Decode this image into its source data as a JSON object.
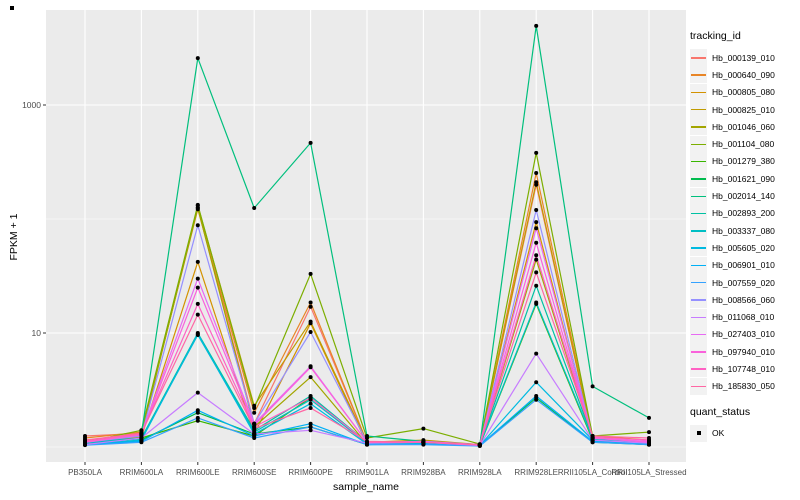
{
  "figure": {
    "panel_bg": "#EBEBEB",
    "grid_color": "#FFFFFF",
    "tick_label_color": "#4D4D4D",
    "tick_mark_color": "#333333"
  },
  "chart_data": {
    "type": "line",
    "title": "",
    "xlabel": "sample_name",
    "ylabel": "FPKM + 1",
    "y_scale": "log10",
    "ylim": [
      0.74,
      6900
    ],
    "grid": true,
    "legend_position": "right",
    "y_ticks": [
      {
        "value": 10,
        "label": "10"
      },
      {
        "value": 1000,
        "label": "1000"
      }
    ],
    "y_minor_breaks": [
      1,
      100
    ],
    "categories": [
      "PB350LA",
      "RRIM600LA",
      "RRIM600LE",
      "RRIM600SE",
      "RRIM600PE",
      "RRIM901LA",
      "RRIM928BA",
      "RRIM928LA",
      "RRIM928LE",
      "RRII105LA_Control",
      "RRII105LA_Stressed"
    ],
    "point_color": "#000000",
    "series": [
      {
        "name": "Hb_000139_010",
        "color": "#F8766D",
        "values": [
          1.25,
          1.32,
          126,
          1.6,
          17,
          1.1,
          1.1,
          1.05,
          200,
          1.2,
          1.1
        ]
      },
      {
        "name": "Hb_000640_090",
        "color": "#E88526",
        "values": [
          1.2,
          1.35,
          122,
          2.0,
          18.5,
          1.1,
          1.12,
          1.05,
          253,
          1.25,
          1.15
        ]
      },
      {
        "name": "Hb_000805_080",
        "color": "#D39200",
        "values": [
          1.1,
          1.22,
          42,
          1.3,
          12.2,
          1.06,
          1.1,
          1.03,
          94,
          1.15,
          1.1
        ]
      },
      {
        "name": "Hb_000825_010",
        "color": "#C09B00",
        "values": [
          1.15,
          1.26,
          131,
          2.3,
          12.6,
          1.1,
          1.15,
          1.05,
          210,
          1.2,
          1.1
        ]
      },
      {
        "name": "Hb_001046_060",
        "color": "#A3A500",
        "values": [
          1.1,
          1.3,
          125,
          1.5,
          4.1,
          1.06,
          1.1,
          1.04,
          44,
          1.2,
          1.1
        ]
      },
      {
        "name": "Hb_001104_080",
        "color": "#7CAE00",
        "values": [
          1.1,
          1.4,
          133,
          2.2,
          33,
          1.2,
          1.45,
          1.06,
          380,
          1.25,
          1.35
        ]
      },
      {
        "name": "Hb_001279_380",
        "color": "#39B600",
        "values": [
          1.05,
          1.2,
          1.7,
          1.25,
          2.7,
          1.1,
          1.1,
          1.03,
          18,
          1.15,
          1.05
        ]
      },
      {
        "name": "Hb_001621_090",
        "color": "#00BB4E",
        "values": [
          1.05,
          1.15,
          2.0,
          1.3,
          1.5,
          1.05,
          1.1,
          1.03,
          2.7,
          1.1,
          1.05
        ]
      },
      {
        "name": "Hb_002014_140",
        "color": "#00BF7D",
        "values": [
          1.1,
          1.3,
          2580,
          125,
          465,
          1.25,
          1.12,
          1.05,
          4940,
          3.4,
          1.8
        ]
      },
      {
        "name": "Hb_002893_200",
        "color": "#00C1A3",
        "values": [
          1.1,
          1.2,
          10,
          1.4,
          2.8,
          1.1,
          1.1,
          1.04,
          26,
          1.2,
          1.1
        ]
      },
      {
        "name": "Hb_003337_080",
        "color": "#00BFC4",
        "values": [
          1.08,
          1.18,
          9.6,
          1.35,
          2.6,
          1.08,
          1.08,
          1.04,
          18.5,
          1.18,
          1.08
        ]
      },
      {
        "name": "Hb_005605_020",
        "color": "#00BAE0",
        "values": [
          1.05,
          1.15,
          9.8,
          1.3,
          2.4,
          1.06,
          1.07,
          1.03,
          3.7,
          1.15,
          1.06
        ]
      },
      {
        "name": "Hb_006901_010",
        "color": "#00B0F6",
        "values": [
          1.05,
          1.12,
          2.1,
          1.25,
          1.6,
          1.05,
          1.06,
          1.03,
          2.8,
          1.12,
          1.05
        ]
      },
      {
        "name": "Hb_007559_020",
        "color": "#35A2FF",
        "values": [
          1.04,
          1.1,
          1.8,
          1.2,
          1.5,
          1.05,
          1.05,
          1.02,
          2.6,
          1.1,
          1.05
        ]
      },
      {
        "name": "Hb_008566_060",
        "color": "#9590FF",
        "values": [
          1.1,
          1.25,
          88,
          1.6,
          10.2,
          1.1,
          1.1,
          1.04,
          120,
          1.2,
          1.1
        ]
      },
      {
        "name": "Hb_011068_010",
        "color": "#C77CFF",
        "values": [
          1.05,
          1.2,
          3.0,
          1.3,
          1.4,
          1.08,
          1.1,
          1.03,
          6.6,
          1.15,
          1.08
        ]
      },
      {
        "name": "Hb_027403_010",
        "color": "#E76BF3",
        "values": [
          1.1,
          1.3,
          30,
          1.6,
          5.1,
          1.1,
          1.12,
          1.05,
          83,
          1.2,
          1.12
        ]
      },
      {
        "name": "Hb_097940_010",
        "color": "#FA62DB",
        "values": [
          1.1,
          1.28,
          25,
          1.55,
          5.0,
          1.1,
          1.1,
          1.04,
          62,
          1.2,
          1.1
        ]
      },
      {
        "name": "Hb_107748_010",
        "color": "#FF61C3",
        "values": [
          1.12,
          1.3,
          18,
          1.5,
          2.7,
          1.1,
          1.1,
          1.05,
          48,
          1.22,
          1.15
        ]
      },
      {
        "name": "Hb_185830_050",
        "color": "#FF67A4",
        "values": [
          1.15,
          1.32,
          14.5,
          1.45,
          2.2,
          1.12,
          1.1,
          1.05,
          34,
          1.25,
          1.2
        ]
      }
    ]
  },
  "legend": {
    "title": "tracking_id",
    "quant_title": "quant_status",
    "quant_items": [
      {
        "label": "OK",
        "marker": "black-square"
      }
    ]
  }
}
